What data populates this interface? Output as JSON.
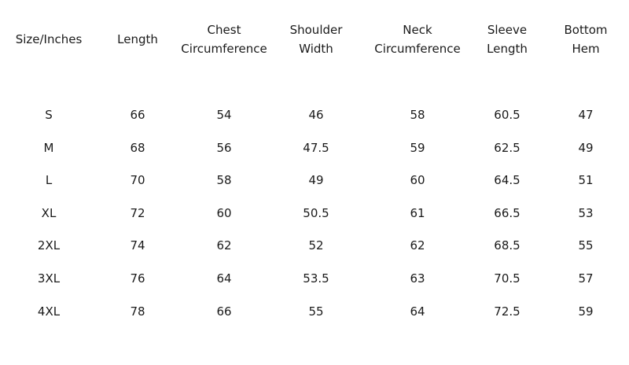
{
  "size_chart": {
    "headers": [
      "Size/Inches",
      "Length",
      "Chest\nCircumference",
      "Shoulder\nWidth",
      "Neck\nCircumference",
      "Sleeve\nLength",
      "Bottom\nHem"
    ],
    "rows": [
      [
        "S",
        "66",
        "54",
        "46",
        "58",
        "60.5",
        "47"
      ],
      [
        "M",
        "68",
        "56",
        "47.5",
        "59",
        "62.5",
        "49"
      ],
      [
        "L",
        "70",
        "58",
        "49",
        "60",
        "64.5",
        "51"
      ],
      [
        "XL",
        "72",
        "60",
        "50.5",
        "61",
        "66.5",
        "53"
      ],
      [
        "2XL",
        "74",
        "62",
        "52",
        "62",
        "68.5",
        "55"
      ],
      [
        "3XL",
        "76",
        "64",
        "53.5",
        "63",
        "70.5",
        "57"
      ],
      [
        "4XL",
        "78",
        "66",
        "55",
        "64",
        "72.5",
        "59"
      ]
    ]
  }
}
